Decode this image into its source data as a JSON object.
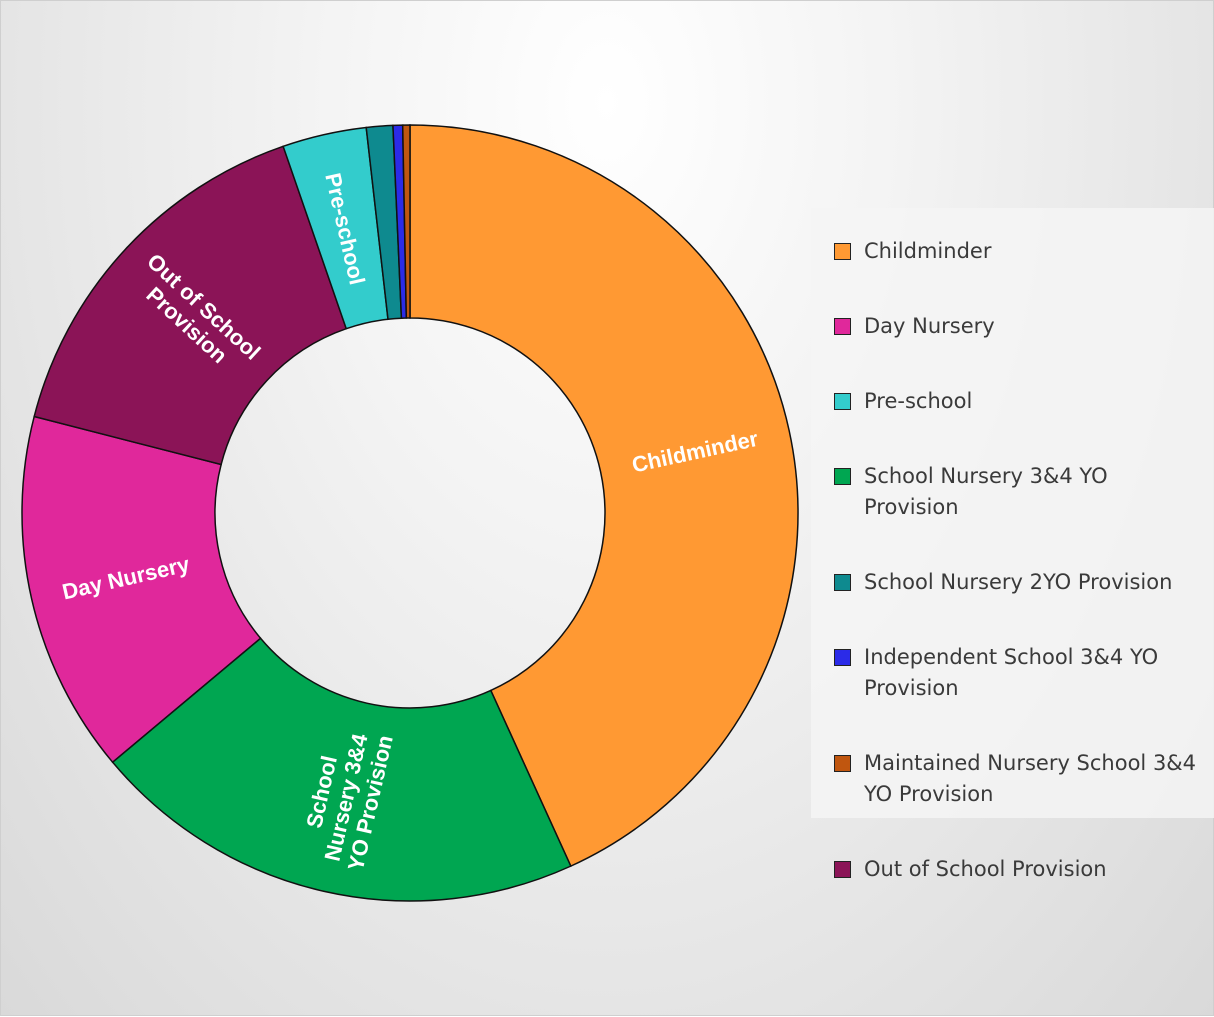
{
  "chart_data": {
    "type": "donut",
    "categories": [
      "Childminder",
      "School Nursery 3&4 YO Provision",
      "Day Nursery",
      "Out of School Provision",
      "Pre-school",
      "School Nursery 2YO Provision",
      "Independent School 3&4 YO Provision",
      "Maintained Nursery School 3&4 YO Provision"
    ],
    "values": [
      43.2,
      20.7,
      15.1,
      15.7,
      3.5,
      1.1,
      0.4,
      0.3
    ],
    "colors": [
      "#ff9933",
      "#00a651",
      "#e0289b",
      "#8b1457",
      "#33cccc",
      "#0e8a8f",
      "#2b2be8",
      "#c0560f"
    ],
    "legend": [
      {
        "name": "Childminder",
        "color": "#ff9933"
      },
      {
        "name": "Day Nursery",
        "color": "#e0289b"
      },
      {
        "name": "Pre-school",
        "color": "#33cccc"
      },
      {
        "name": "School Nursery 3&4 YO Provision",
        "color": "#00a651"
      },
      {
        "name": "School Nursery 2YO Provision",
        "color": "#0e8a8f"
      },
      {
        "name": "Independent School 3&4 YO Provision",
        "color": "#2b2be8"
      },
      {
        "name": "Maintained Nursery School 3&4 YO Provision",
        "color": "#c0560f"
      },
      {
        "name": "Out of School Provision",
        "color": "#8b1457"
      }
    ]
  }
}
